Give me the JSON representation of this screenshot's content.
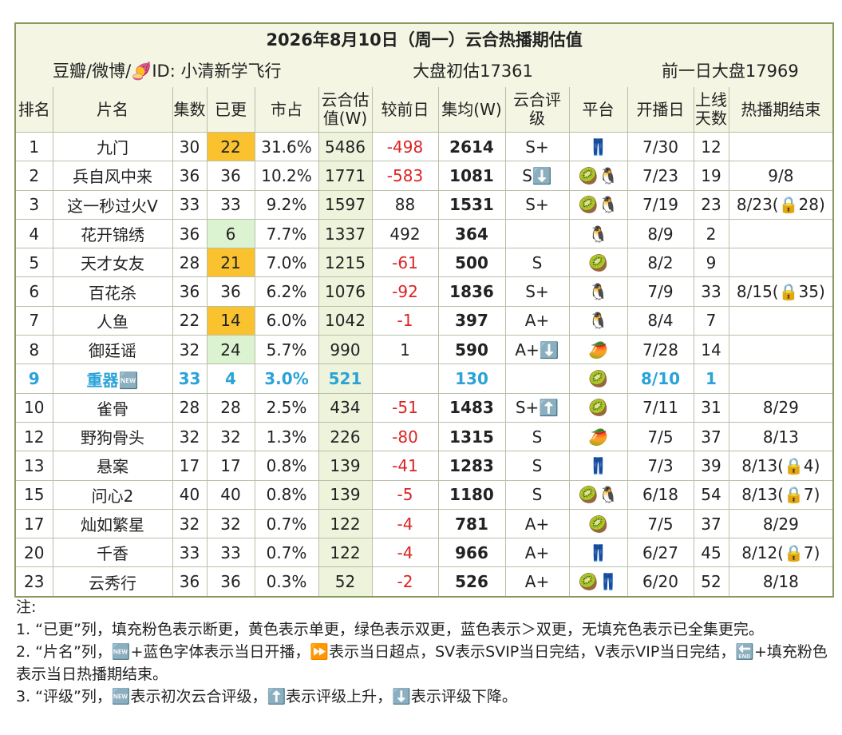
{
  "header": {
    "title": "2026年8月10日（周一）云合热播期估值",
    "source": "豆瓣/微博/🍠ID: 小清新学飞行",
    "estimate": "大盘初估17361",
    "previous": "前一日大盘17969"
  },
  "table": {
    "columns": [
      "排名",
      "片名",
      "集数",
      "已更",
      "市占",
      "云合估值(W)",
      "较前日",
      "集均(W)",
      "云合评级",
      "平台",
      "开播日",
      "上线天数",
      "热播期结束"
    ],
    "rows": [
      {
        "cells": [
          "1",
          "九门",
          "30",
          "22",
          "31.6%",
          "5486",
          "-498",
          "2614",
          "S+",
          "👖",
          "7/30",
          "12",
          null
        ],
        "updated_fill": "yellow"
      },
      {
        "cells": [
          "2",
          "兵自风中来",
          "36",
          "36",
          "10.2%",
          "1771",
          "-583",
          "1081",
          "S⬇️",
          "🥝🐧",
          "7/23",
          "19",
          "9/8"
        ]
      },
      {
        "cells": [
          "3",
          "这一秒过火V",
          "33",
          "33",
          "9.2%",
          "1597",
          "88",
          "1531",
          "S+",
          "🥝🐧",
          "7/19",
          "23",
          "8/23(🔒28)"
        ]
      },
      {
        "cells": [
          "4",
          "花开锦绣",
          "36",
          "6",
          "7.7%",
          "1337",
          "492",
          "364",
          null,
          "🐧",
          "8/9",
          "2",
          null
        ],
        "updated_fill": "green"
      },
      {
        "cells": [
          "5",
          "天才女友",
          "28",
          "21",
          "7.0%",
          "1215",
          "-61",
          "500",
          "S",
          "🥝",
          "8/2",
          "9",
          null
        ],
        "updated_fill": "yellow"
      },
      {
        "cells": [
          "6",
          "百花杀",
          "36",
          "36",
          "6.2%",
          "1076",
          "-92",
          "1836",
          "S+",
          "🐧",
          "7/9",
          "33",
          "8/15(🔒35)"
        ]
      },
      {
        "cells": [
          "7",
          "人鱼",
          "22",
          "14",
          "6.0%",
          "1042",
          "-1",
          "397",
          "A+",
          "🐧",
          "8/4",
          "7",
          null
        ],
        "updated_fill": "yellow"
      },
      {
        "cells": [
          "8",
          "御廷谣",
          "32",
          "24",
          "5.7%",
          "990",
          "1",
          "590",
          "A+⬇️",
          "🥭",
          "7/28",
          "14",
          null
        ],
        "updated_fill": "green"
      },
      {
        "cells": [
          "9",
          "重器🆕",
          "33",
          "4",
          "3.0%",
          "521",
          null,
          "130",
          null,
          "🥝",
          "8/10",
          "1",
          null
        ],
        "highlight": "new"
      },
      {
        "cells": [
          "10",
          "雀骨",
          "28",
          "28",
          "2.5%",
          "434",
          "-51",
          "1483",
          "S+⬆️",
          "🥝",
          "7/11",
          "31",
          "8/29"
        ]
      },
      {
        "cells": [
          "12",
          "野狗骨头",
          "32",
          "32",
          "1.3%",
          "226",
          "-80",
          "1315",
          "S",
          "🥭",
          "7/5",
          "37",
          "8/13"
        ]
      },
      {
        "cells": [
          "13",
          "悬案",
          "17",
          "17",
          "0.8%",
          "139",
          "-41",
          "1283",
          "S",
          "👖",
          "7/3",
          "39",
          "8/13(🔒4)"
        ]
      },
      {
        "cells": [
          "15",
          "问心2",
          "40",
          "40",
          "0.8%",
          "139",
          "-5",
          "1180",
          "S",
          "🥝🐧",
          "6/18",
          "54",
          "8/13(🔒7)"
        ]
      },
      {
        "cells": [
          "17",
          "灿如繁星",
          "32",
          "32",
          "0.7%",
          "122",
          "-4",
          "781",
          "A+",
          "🥝",
          "7/5",
          "37",
          "8/29"
        ]
      },
      {
        "cells": [
          "20",
          "千香",
          "33",
          "33",
          "0.7%",
          "122",
          "-4",
          "966",
          "A+",
          "👖",
          "6/27",
          "45",
          "8/12(🔒7)"
        ]
      },
      {
        "cells": [
          "23",
          "云秀行",
          "36",
          "36",
          "0.3%",
          "52",
          "-2",
          "526",
          "A+",
          "🥝👖",
          "6/20",
          "52",
          "8/18"
        ]
      }
    ]
  },
  "notes": {
    "title": "注:",
    "lines": [
      "1. “已更”列，填充粉色表示断更，黄色表示单更，绿色表示双更，蓝色表示＞双更，无填充色表示已全集更完。",
      "2. “片名”列，🆕+蓝色字体表示当日开播，⏩表示当日超点，SV表示SVIP当日完结，V表示VIP当日完结，🔚+填充粉色表示当日热播期结束。",
      "3. “评级”列，🆕表示初次云合评级，⬆️表示评级上升，⬇️表示评级下降。"
    ]
  }
}
